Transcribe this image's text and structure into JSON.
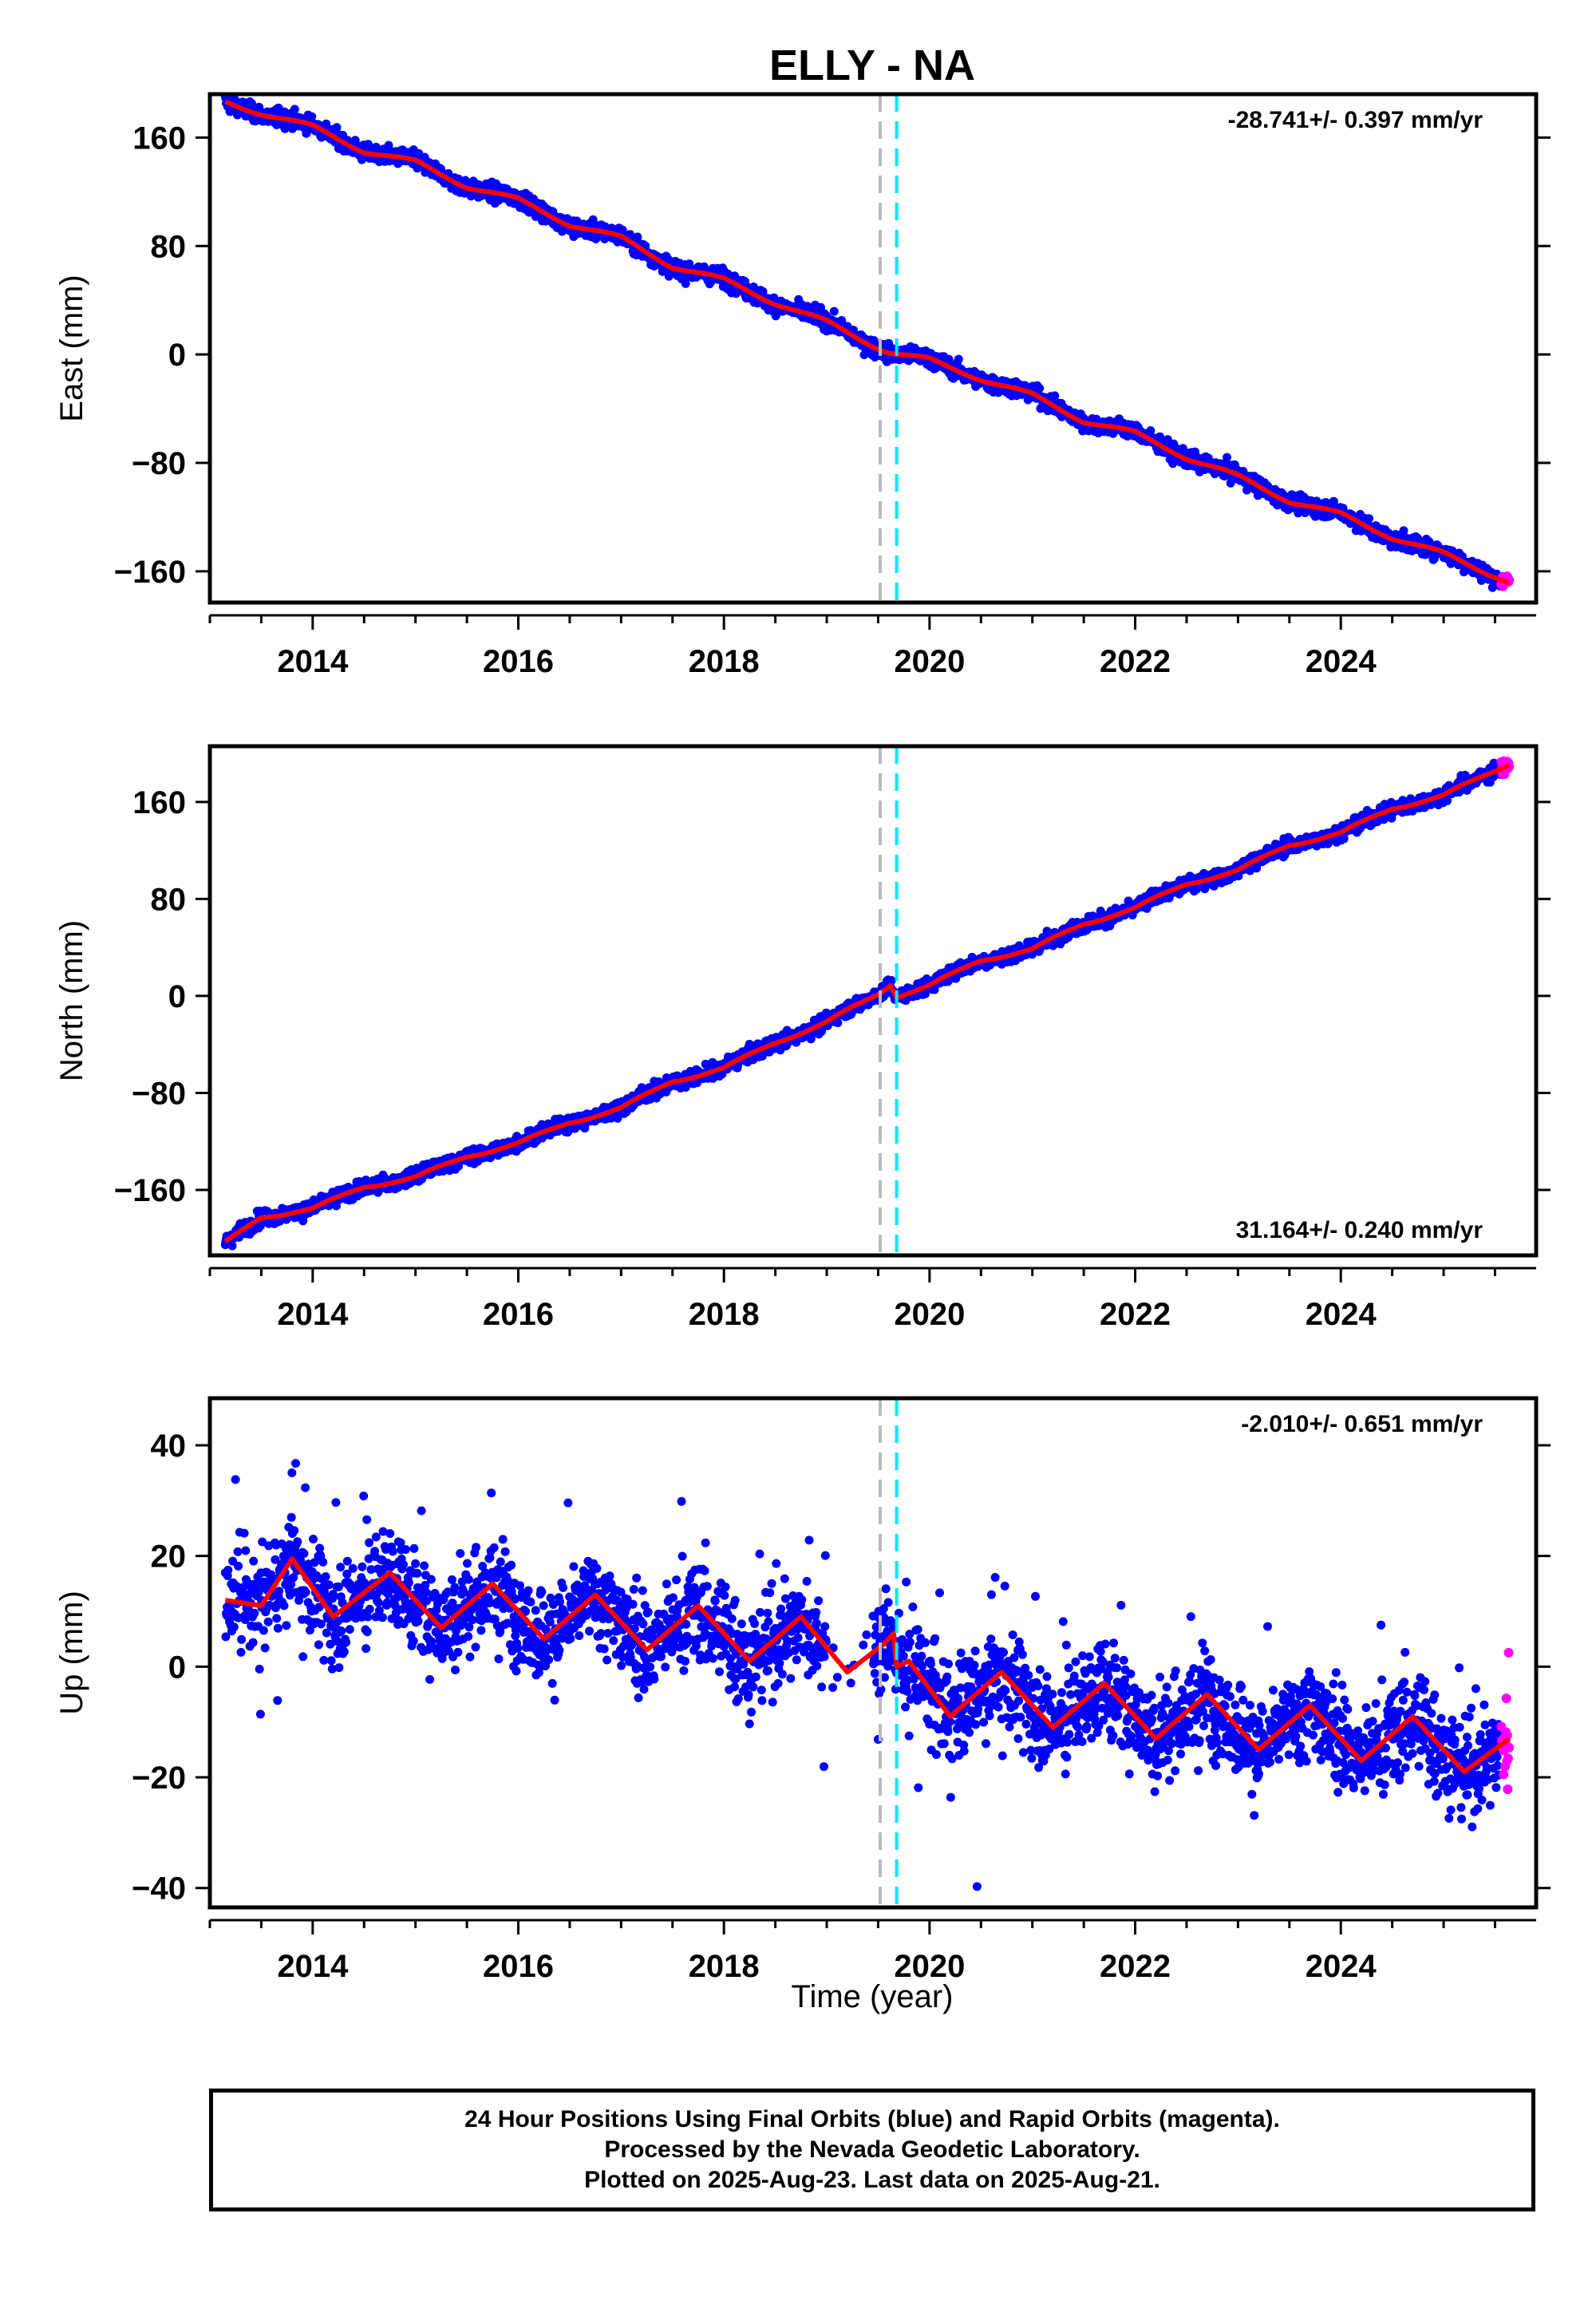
{
  "title": "ELLY - NA",
  "xlabel": "Time (year)",
  "colors": {
    "final_orbits": "#0000ff",
    "rapid_orbits": "#ff00ff",
    "model": "#ff0000",
    "marker_gray": "#bbbbbb",
    "marker_cyan": "#00e5ff",
    "axis": "#000000"
  },
  "footer": {
    "line1": "24 Hour Positions Using Final Orbits (blue) and Rapid Orbits (magenta).",
    "line2": "Processed by the Nevada Geodetic Laboratory.",
    "line3": "Plotted on 2025-Aug-23. Last data on 2025-Aug-21."
  },
  "chart_data": [
    {
      "type": "scatter",
      "ylabel": "East (mm)",
      "rate_label": "-28.741+/- 0.397 mm/yr",
      "rate_position": "top-right",
      "xlim": [
        2013.0,
        2025.9
      ],
      "ylim": [
        -183,
        192
      ],
      "x_ticks": [
        2014,
        2016,
        2018,
        2020,
        2022,
        2024
      ],
      "y_ticks": [
        -160,
        -80,
        0,
        80,
        160
      ],
      "vertical_markers": [
        {
          "x": 2019.52,
          "color": "gray",
          "style": "dashed"
        },
        {
          "x": 2019.68,
          "color": "cyan",
          "style": "dashed"
        }
      ],
      "data_start": 2013.15,
      "data_end": 2025.64,
      "rapid_start": 2025.56,
      "model": [
        [
          2013.15,
          186
        ],
        [
          2013.5,
          178
        ],
        [
          2014.0,
          168
        ],
        [
          2014.5,
          150
        ],
        [
          2015.0,
          142
        ],
        [
          2015.5,
          124
        ],
        [
          2016.0,
          114
        ],
        [
          2016.5,
          96
        ],
        [
          2017.0,
          86
        ],
        [
          2017.5,
          65
        ],
        [
          2018.0,
          55
        ],
        [
          2018.5,
          38
        ],
        [
          2019.0,
          24
        ],
        [
          2019.5,
          5
        ],
        [
          2019.6,
          2
        ],
        [
          2019.7,
          0
        ],
        [
          2020.0,
          -4
        ],
        [
          2020.5,
          -18
        ],
        [
          2021.0,
          -30
        ],
        [
          2021.5,
          -49
        ],
        [
          2022.0,
          -58
        ],
        [
          2022.5,
          -76
        ],
        [
          2023.0,
          -90
        ],
        [
          2023.5,
          -108
        ],
        [
          2024.0,
          -118
        ],
        [
          2024.5,
          -135
        ],
        [
          2025.0,
          -147
        ],
        [
          2025.64,
          -168
        ]
      ],
      "seasonal": {
        "amplitude": 1.5,
        "phase": 0.3
      },
      "scatter": {
        "noise": 3,
        "outlier_rate": 0,
        "outlier_scale": 0
      }
    },
    {
      "type": "scatter",
      "ylabel": "North (mm)",
      "rate_label": "31.164+/- 0.240 mm/yr",
      "rate_position": "bottom-right",
      "xlim": [
        2013.0,
        2025.9
      ],
      "ylim": [
        -214,
        206
      ],
      "x_ticks": [
        2014,
        2016,
        2018,
        2020,
        2022,
        2024
      ],
      "y_ticks": [
        -160,
        -80,
        0,
        80,
        160
      ],
      "vertical_markers": [
        {
          "x": 2019.52,
          "color": "gray",
          "style": "dashed"
        },
        {
          "x": 2019.68,
          "color": "cyan",
          "style": "dashed"
        }
      ],
      "data_start": 2013.15,
      "data_end": 2025.64,
      "rapid_start": 2025.56,
      "model": [
        [
          2013.15,
          -204
        ],
        [
          2013.5,
          -182
        ],
        [
          2014.0,
          -176
        ],
        [
          2014.5,
          -157
        ],
        [
          2015.0,
          -150
        ],
        [
          2015.5,
          -132
        ],
        [
          2016.0,
          -122
        ],
        [
          2016.5,
          -104
        ],
        [
          2017.0,
          -93
        ],
        [
          2017.5,
          -70
        ],
        [
          2018.0,
          -60
        ],
        [
          2018.5,
          -38
        ],
        [
          2019.0,
          -22
        ],
        [
          2019.5,
          2
        ],
        [
          2019.62,
          10
        ],
        [
          2019.68,
          0
        ],
        [
          2020.0,
          8
        ],
        [
          2020.5,
          30
        ],
        [
          2021.0,
          38
        ],
        [
          2021.5,
          60
        ],
        [
          2022.0,
          72
        ],
        [
          2022.5,
          93
        ],
        [
          2023.0,
          103
        ],
        [
          2023.5,
          125
        ],
        [
          2024.0,
          134
        ],
        [
          2024.5,
          155
        ],
        [
          2025.0,
          165
        ],
        [
          2025.64,
          192
        ]
      ],
      "seasonal": {
        "amplitude": 1.5,
        "phase": 0.1
      },
      "scatter": {
        "noise": 3,
        "outlier_rate": 0,
        "outlier_scale": 0
      }
    },
    {
      "type": "scatter",
      "ylabel": "Up (mm)",
      "rate_label": "-2.010+/- 0.651 mm/yr",
      "rate_position": "top-right",
      "xlim": [
        2013.0,
        2025.9
      ],
      "ylim": [
        -43.5,
        48.5
      ],
      "x_ticks": [
        2014,
        2016,
        2018,
        2020,
        2022,
        2024
      ],
      "y_ticks": [
        -40,
        -20,
        0,
        20,
        40
      ],
      "vertical_markers": [
        {
          "x": 2019.52,
          "color": "gray",
          "style": "dashed"
        },
        {
          "x": 2019.68,
          "color": "cyan",
          "style": "dashed"
        }
      ],
      "data_start": 2013.15,
      "data_end": 2025.64,
      "rapid_start": 2025.56,
      "gap": [
        2019.0,
        2019.45
      ],
      "model": [
        [
          2013.15,
          12
        ],
        [
          2013.5,
          11
        ],
        [
          2013.8,
          19.5
        ],
        [
          2014.2,
          9
        ],
        [
          2014.75,
          17
        ],
        [
          2015.25,
          7
        ],
        [
          2015.75,
          15
        ],
        [
          2016.25,
          5
        ],
        [
          2016.75,
          13
        ],
        [
          2017.25,
          3
        ],
        [
          2017.75,
          11
        ],
        [
          2018.25,
          1
        ],
        [
          2018.75,
          9
        ],
        [
          2019.2,
          -1
        ],
        [
          2019.55,
          4
        ],
        [
          2019.65,
          6
        ],
        [
          2019.68,
          0
        ],
        [
          2019.8,
          1
        ],
        [
          2020.2,
          -9
        ],
        [
          2020.7,
          -1
        ],
        [
          2021.2,
          -11
        ],
        [
          2021.7,
          -3
        ],
        [
          2022.2,
          -13
        ],
        [
          2022.7,
          -5
        ],
        [
          2023.2,
          -15
        ],
        [
          2023.7,
          -7
        ],
        [
          2024.2,
          -17
        ],
        [
          2024.7,
          -9
        ],
        [
          2025.2,
          -19
        ],
        [
          2025.64,
          -13
        ]
      ],
      "seasonal": {
        "amplitude": 0,
        "phase": 0
      },
      "scatter": {
        "noise": 4.2,
        "outlier_rate": 0.05,
        "outlier_scale": 3
      }
    }
  ]
}
